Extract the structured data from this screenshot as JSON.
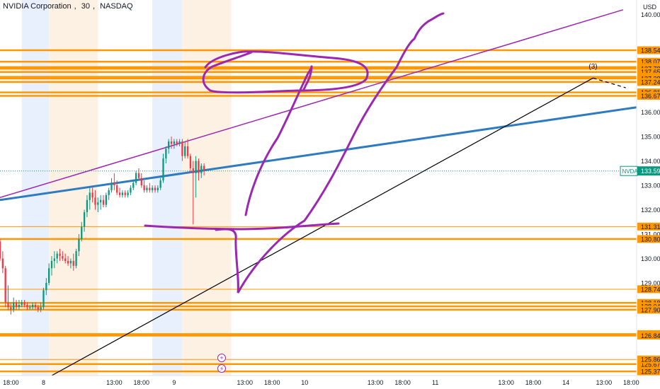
{
  "header": {
    "symbol_name": "NVIDIA Corporation",
    "interval": "30",
    "exchange": "NASDAQ",
    "currency": "USD"
  },
  "colors": {
    "bull": "#089981",
    "bear": "#f23645",
    "orange_level": "#ff9800",
    "trend_blue": "#2e7cbf",
    "channel_purple": "#9c27b0",
    "drawing_purple": "#9c27b0",
    "trend_black": "#000000",
    "session_blue": "#e8effd",
    "session_orange": "#fdf1e3",
    "last_price_badge": "#089981"
  },
  "chart_data": {
    "type": "candlestick",
    "symbol": "NVDA",
    "last_price": 133.59,
    "last_price_label": "NVDA",
    "wave_label": "(3)",
    "y_axis": {
      "range": [
        125.2,
        140.6
      ],
      "ticks": [
        "140.00",
        "136.00",
        "135.00",
        "134.00",
        "133.00",
        "132.00",
        "131.00",
        "130.00",
        "129.00"
      ]
    },
    "x_axis": {
      "range": [
        16.0,
        133.0
      ],
      "ticks": [
        {
          "label": "18:00",
          "hour": 18
        },
        {
          "label": "8",
          "hour": 24
        },
        {
          "label": "13:00",
          "hour": 37
        },
        {
          "label": "18:00",
          "hour": 42
        },
        {
          "label": "9",
          "hour": 48
        },
        {
          "label": "13:00",
          "hour": 61
        },
        {
          "label": "18:00",
          "hour": 66
        },
        {
          "label": "10",
          "hour": 72
        },
        {
          "label": "13:00",
          "hour": 85
        },
        {
          "label": "18:00",
          "hour": 90
        },
        {
          "label": "11",
          "hour": 96
        },
        {
          "label": "13:00",
          "hour": 109
        },
        {
          "label": "18:00",
          "hour": 114
        },
        {
          "label": "14",
          "hour": 120
        },
        {
          "label": "13:00",
          "hour": 127
        },
        {
          "label": "18:00",
          "hour": 132
        }
      ]
    },
    "sessions": [
      {
        "type": "premarket",
        "start": 20.0,
        "end": 25.0
      },
      {
        "type": "postmarket",
        "start": 25.0,
        "end": 34.0
      },
      {
        "type": "premarket",
        "start": 44.0,
        "end": 49.5
      },
      {
        "type": "postmarket",
        "start": 49.5,
        "end": 58.5
      }
    ],
    "levels": [
      {
        "price": 138.54,
        "label": "138.54",
        "style": "thick"
      },
      {
        "price": 138.07,
        "label": "138.07",
        "style": "thick"
      },
      {
        "price": 137.85,
        "label": "137.85",
        "style": "thick"
      },
      {
        "price": 137.78,
        "label": "137.78",
        "style": "thick"
      },
      {
        "price": 137.65,
        "label": "137.65",
        "style": "thick"
      },
      {
        "price": 137.45,
        "label": "137.45",
        "style": "thick"
      },
      {
        "price": 137.38,
        "label": "137.38",
        "style": "thick"
      },
      {
        "price": 137.24,
        "label": "137.24",
        "style": "thick"
      },
      {
        "price": 136.81,
        "label": "136.81",
        "style": "thick"
      },
      {
        "price": 136.67,
        "label": "136.67",
        "style": "thick"
      },
      {
        "price": 131.31,
        "label": "131.31",
        "style": "thin"
      },
      {
        "price": 130.8,
        "label": "130.80",
        "style": "thick"
      },
      {
        "price": 128.74,
        "label": "128.74",
        "style": "thin"
      },
      {
        "price": 128.18,
        "label": "128.18",
        "style": "thick"
      },
      {
        "price": 128.04,
        "label": "128.04",
        "style": "thick"
      },
      {
        "price": 127.9,
        "label": "127.90",
        "style": "thick"
      },
      {
        "price": 126.9,
        "label": "126.90",
        "style": "thick"
      },
      {
        "price": 126.84,
        "label": "126.84",
        "style": "thick"
      },
      {
        "price": 125.67,
        "label": "125.67",
        "style": "thick"
      },
      {
        "price": 125.86,
        "label": "125.86",
        "style": "thin"
      },
      {
        "price": 125.37,
        "label": "125.37",
        "style": "thick"
      }
    ],
    "trend_lines": [
      {
        "name": "blue-trend",
        "color": "trend_blue",
        "from": [
          16.0,
          132.4
        ],
        "to": [
          133.0,
          136.2
        ]
      },
      {
        "name": "purple-channel",
        "color": "channel_purple",
        "from": [
          16.0,
          132.5
        ],
        "to": [
          130.5,
          140.2
        ]
      },
      {
        "name": "black-trend",
        "color": "trend_black",
        "from": [
          25.5,
          125.2
        ],
        "to": [
          125.0,
          137.4
        ]
      },
      {
        "name": "black-dashed",
        "color": "trend_black",
        "dashed": true,
        "from": [
          125.0,
          137.4
        ],
        "to": [
          131.0,
          137.0
        ]
      }
    ],
    "candles": [
      {
        "t": 16.0,
        "o": 130.7,
        "h": 130.8,
        "l": 129.9,
        "c": 130.0
      },
      {
        "t": 16.5,
        "o": 130.0,
        "h": 130.3,
        "l": 129.4,
        "c": 129.6
      },
      {
        "t": 17.0,
        "o": 129.6,
        "h": 129.7,
        "l": 128.0,
        "c": 128.2
      },
      {
        "t": 17.5,
        "o": 128.2,
        "h": 128.9,
        "l": 127.9,
        "c": 128.0
      },
      {
        "t": 18.0,
        "o": 128.0,
        "h": 128.2,
        "l": 127.7,
        "c": 127.9
      },
      {
        "t": 18.5,
        "o": 127.9,
        "h": 128.4,
        "l": 127.8,
        "c": 128.2
      },
      {
        "t": 19.0,
        "o": 128.2,
        "h": 128.3,
        "l": 127.9,
        "c": 128.0
      },
      {
        "t": 19.5,
        "o": 128.0,
        "h": 128.3,
        "l": 127.9,
        "c": 128.1
      },
      {
        "t": 20.0,
        "o": 128.1,
        "h": 128.3,
        "l": 128.0,
        "c": 128.2
      },
      {
        "t": 20.5,
        "o": 128.2,
        "h": 128.3,
        "l": 128.0,
        "c": 128.1
      },
      {
        "t": 21.0,
        "o": 128.1,
        "h": 128.2,
        "l": 127.9,
        "c": 128.0
      },
      {
        "t": 21.5,
        "o": 128.0,
        "h": 128.1,
        "l": 127.9,
        "c": 128.0
      },
      {
        "t": 22.0,
        "o": 128.0,
        "h": 128.2,
        "l": 127.9,
        "c": 128.1
      },
      {
        "t": 22.5,
        "o": 128.1,
        "h": 128.2,
        "l": 127.9,
        "c": 128.0
      },
      {
        "t": 23.0,
        "o": 128.0,
        "h": 128.1,
        "l": 127.8,
        "c": 127.9
      },
      {
        "t": 23.5,
        "o": 127.9,
        "h": 128.2,
        "l": 127.8,
        "c": 128.0
      },
      {
        "t": 24.0,
        "o": 128.0,
        "h": 128.8,
        "l": 127.9,
        "c": 128.7
      },
      {
        "t": 24.5,
        "o": 128.7,
        "h": 129.2,
        "l": 128.5,
        "c": 129.0
      },
      {
        "t": 25.0,
        "o": 129.0,
        "h": 129.8,
        "l": 128.9,
        "c": 129.6
      },
      {
        "t": 25.5,
        "o": 129.6,
        "h": 130.1,
        "l": 129.3,
        "c": 129.9
      },
      {
        "t": 26.0,
        "o": 129.9,
        "h": 130.3,
        "l": 129.6,
        "c": 130.0
      },
      {
        "t": 26.5,
        "o": 130.0,
        "h": 130.3,
        "l": 129.8,
        "c": 130.2
      },
      {
        "t": 27.0,
        "o": 130.2,
        "h": 130.4,
        "l": 129.9,
        "c": 130.1
      },
      {
        "t": 27.5,
        "o": 130.1,
        "h": 130.3,
        "l": 129.9,
        "c": 130.0
      },
      {
        "t": 28.0,
        "o": 130.0,
        "h": 130.2,
        "l": 129.8,
        "c": 129.9
      },
      {
        "t": 28.5,
        "o": 129.9,
        "h": 130.1,
        "l": 129.7,
        "c": 129.8
      },
      {
        "t": 29.0,
        "o": 129.8,
        "h": 130.0,
        "l": 129.6,
        "c": 129.9
      },
      {
        "t": 29.5,
        "o": 129.9,
        "h": 130.2,
        "l": 129.5,
        "c": 129.7
      },
      {
        "t": 30.0,
        "o": 129.7,
        "h": 130.4,
        "l": 129.6,
        "c": 130.3
      },
      {
        "t": 30.5,
        "o": 130.3,
        "h": 131.0,
        "l": 130.1,
        "c": 130.8
      },
      {
        "t": 31.0,
        "o": 130.8,
        "h": 131.5,
        "l": 130.7,
        "c": 131.3
      },
      {
        "t": 31.5,
        "o": 131.3,
        "h": 132.0,
        "l": 131.1,
        "c": 131.9
      },
      {
        "t": 32.0,
        "o": 131.9,
        "h": 132.6,
        "l": 131.7,
        "c": 132.4
      },
      {
        "t": 32.5,
        "o": 132.4,
        "h": 132.9,
        "l": 132.0,
        "c": 132.7
      },
      {
        "t": 33.0,
        "o": 132.7,
        "h": 132.9,
        "l": 132.3,
        "c": 132.5
      },
      {
        "t": 33.5,
        "o": 132.5,
        "h": 132.8,
        "l": 132.0,
        "c": 132.2
      },
      {
        "t": 34.0,
        "o": 132.2,
        "h": 132.5,
        "l": 131.9,
        "c": 132.3
      },
      {
        "t": 34.5,
        "o": 132.3,
        "h": 132.6,
        "l": 132.0,
        "c": 132.4
      },
      {
        "t": 35.0,
        "o": 132.4,
        "h": 132.6,
        "l": 132.1,
        "c": 132.2
      },
      {
        "t": 35.5,
        "o": 132.2,
        "h": 132.7,
        "l": 132.1,
        "c": 132.6
      },
      {
        "t": 36.0,
        "o": 132.6,
        "h": 132.9,
        "l": 132.4,
        "c": 132.8
      },
      {
        "t": 36.5,
        "o": 132.8,
        "h": 133.3,
        "l": 132.7,
        "c": 133.1
      },
      {
        "t": 37.0,
        "o": 133.1,
        "h": 133.5,
        "l": 132.8,
        "c": 133.0
      },
      {
        "t": 37.5,
        "o": 133.0,
        "h": 133.2,
        "l": 132.6,
        "c": 132.7
      },
      {
        "t": 38.0,
        "o": 132.7,
        "h": 132.9,
        "l": 132.5,
        "c": 132.6
      },
      {
        "t": 38.5,
        "o": 132.6,
        "h": 132.8,
        "l": 132.5,
        "c": 132.7
      },
      {
        "t": 39.0,
        "o": 132.7,
        "h": 132.8,
        "l": 132.5,
        "c": 132.6
      },
      {
        "t": 39.5,
        "o": 132.6,
        "h": 132.8,
        "l": 132.5,
        "c": 132.7
      },
      {
        "t": 40.0,
        "o": 132.7,
        "h": 133.0,
        "l": 132.6,
        "c": 132.9
      },
      {
        "t": 40.5,
        "o": 132.9,
        "h": 133.2,
        "l": 132.8,
        "c": 133.1
      },
      {
        "t": 41.0,
        "o": 133.1,
        "h": 133.6,
        "l": 133.0,
        "c": 133.5
      },
      {
        "t": 41.5,
        "o": 133.5,
        "h": 133.7,
        "l": 133.2,
        "c": 133.3
      },
      {
        "t": 42.0,
        "o": 133.3,
        "h": 133.5,
        "l": 132.9,
        "c": 133.0
      },
      {
        "t": 42.5,
        "o": 133.0,
        "h": 133.2,
        "l": 132.7,
        "c": 132.8
      },
      {
        "t": 43.0,
        "o": 132.8,
        "h": 133.0,
        "l": 132.7,
        "c": 132.9
      },
      {
        "t": 43.5,
        "o": 132.9,
        "h": 133.1,
        "l": 132.7,
        "c": 132.8
      },
      {
        "t": 44.0,
        "o": 132.8,
        "h": 133.0,
        "l": 132.7,
        "c": 132.9
      },
      {
        "t": 44.5,
        "o": 132.9,
        "h": 133.0,
        "l": 132.7,
        "c": 132.8
      },
      {
        "t": 45.0,
        "o": 132.8,
        "h": 133.0,
        "l": 132.7,
        "c": 132.9
      },
      {
        "t": 45.5,
        "o": 132.9,
        "h": 133.3,
        "l": 132.8,
        "c": 133.2
      },
      {
        "t": 46.0,
        "o": 133.2,
        "h": 134.3,
        "l": 133.1,
        "c": 134.1
      },
      {
        "t": 46.5,
        "o": 134.1,
        "h": 134.6,
        "l": 133.9,
        "c": 134.5
      },
      {
        "t": 47.0,
        "o": 134.5,
        "h": 134.9,
        "l": 134.3,
        "c": 134.8
      },
      {
        "t": 47.5,
        "o": 134.8,
        "h": 135.0,
        "l": 134.5,
        "c": 134.7
      },
      {
        "t": 48.0,
        "o": 134.7,
        "h": 134.9,
        "l": 134.5,
        "c": 134.8
      },
      {
        "t": 48.5,
        "o": 134.8,
        "h": 134.9,
        "l": 134.6,
        "c": 134.7
      },
      {
        "t": 49.0,
        "o": 134.7,
        "h": 134.9,
        "l": 134.6,
        "c": 134.8
      },
      {
        "t": 49.5,
        "o": 134.8,
        "h": 134.9,
        "l": 134.0,
        "c": 134.2
      },
      {
        "t": 50.0,
        "o": 134.2,
        "h": 134.8,
        "l": 134.1,
        "c": 134.6
      },
      {
        "t": 50.5,
        "o": 134.6,
        "h": 134.9,
        "l": 134.1,
        "c": 134.2
      },
      {
        "t": 51.0,
        "o": 134.2,
        "h": 134.3,
        "l": 133.5,
        "c": 133.7
      },
      {
        "t": 51.5,
        "o": 133.7,
        "h": 134.0,
        "l": 131.4,
        "c": 133.5
      },
      {
        "t": 52.0,
        "o": 133.5,
        "h": 134.2,
        "l": 132.5,
        "c": 134.0
      },
      {
        "t": 52.5,
        "o": 134.0,
        "h": 134.1,
        "l": 133.2,
        "c": 133.5
      },
      {
        "t": 53.0,
        "o": 133.5,
        "h": 133.9,
        "l": 133.3,
        "c": 133.8
      },
      {
        "t": 53.5,
        "o": 133.8,
        "h": 133.9,
        "l": 133.4,
        "c": 133.59
      }
    ],
    "annotations": [
      {
        "name": "wave-3-label",
        "text": "(3)",
        "x": 125.0,
        "y": 137.55
      }
    ]
  }
}
